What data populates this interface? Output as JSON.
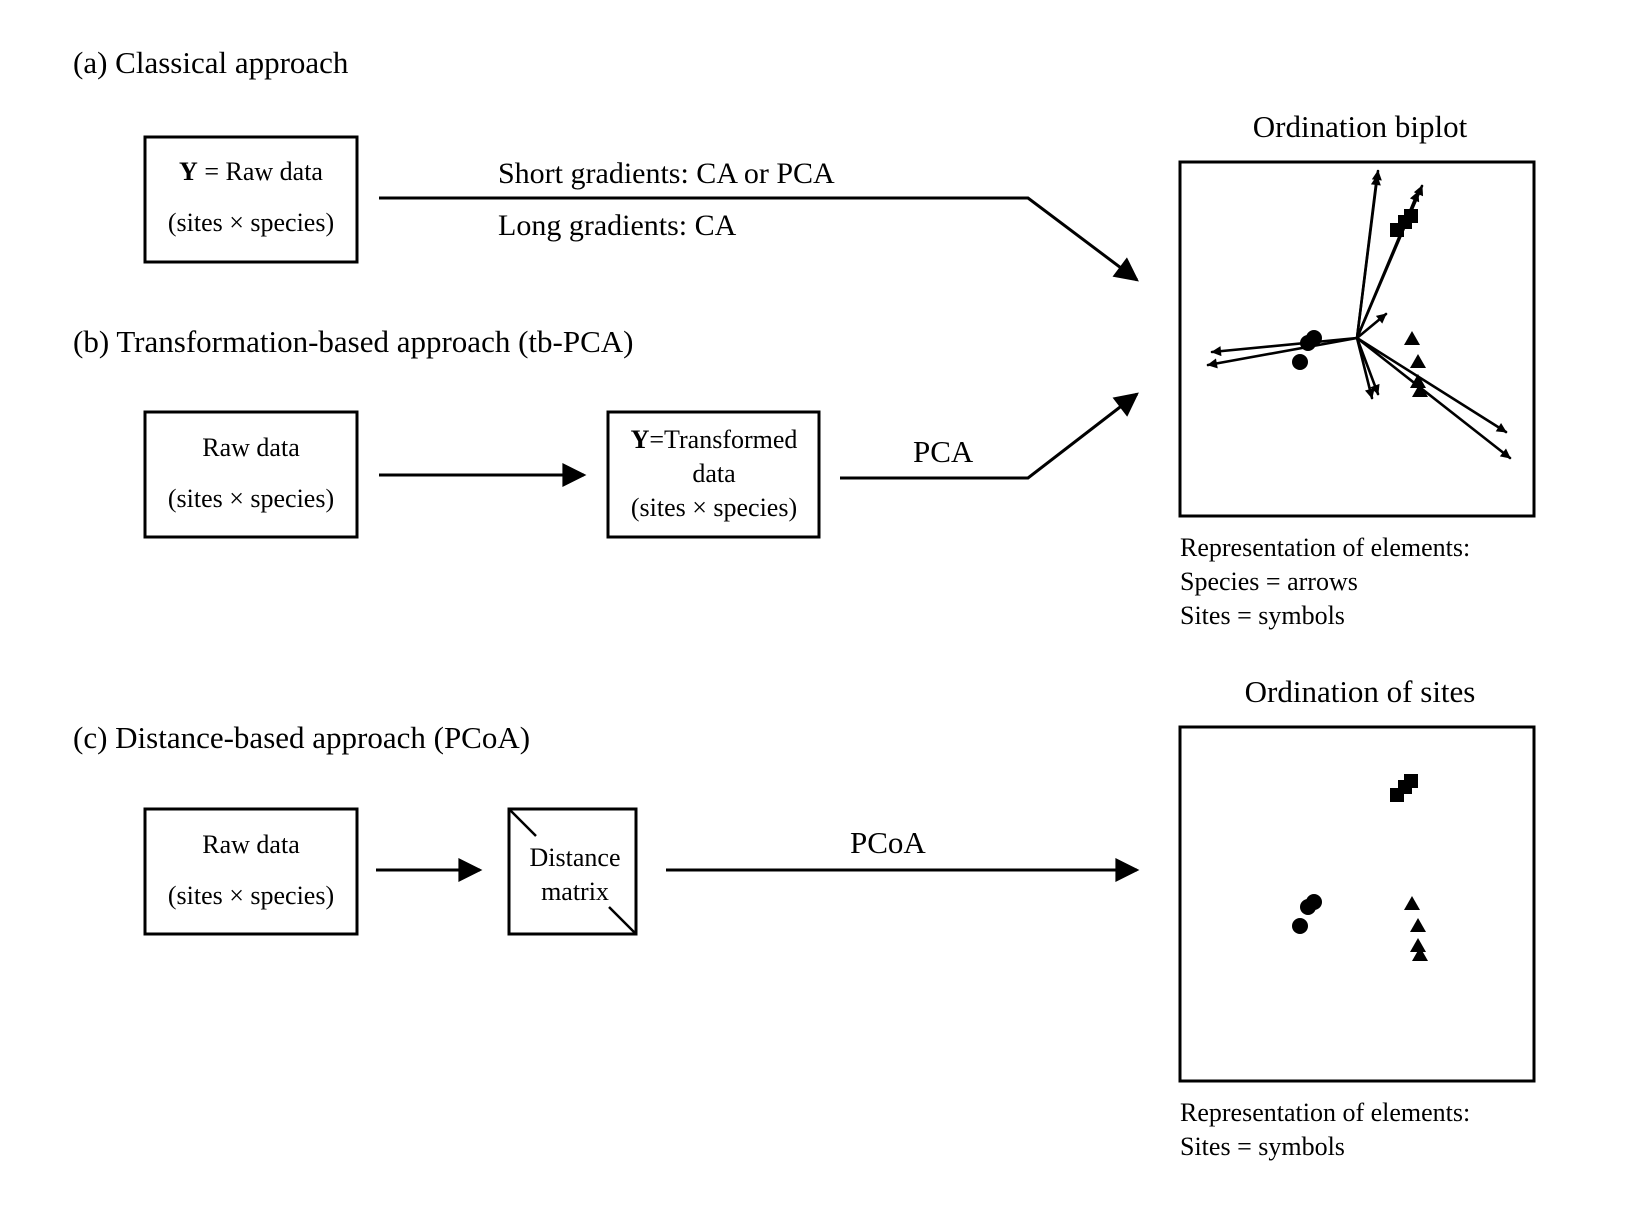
{
  "sections": {
    "a": {
      "heading": "(a) Classical approach",
      "box_y_label": "Y",
      "box_rest": " = Raw data",
      "box_line2": "(sites × species)",
      "path_upper": "Short gradients: CA or PCA",
      "path_lower": "Long gradients: CA"
    },
    "b": {
      "heading": "(b) Transformation-based approach (tb-PCA)",
      "raw_line1": "Raw data",
      "raw_line2": "(sites × species)",
      "trans_y_label": "Y",
      "trans_rest": "=Transformed",
      "trans_line2": "data",
      "trans_line3": "(sites × species)",
      "method": "PCA"
    },
    "c": {
      "heading": "(c) Distance-based approach (PCoA)",
      "raw_line1": "Raw data",
      "raw_line2": "(sites × species)",
      "dist_line1": "Distance",
      "dist_line2": "matrix",
      "method": "PCoA"
    }
  },
  "biplot": {
    "title": "Ordination biplot",
    "caption": [
      "Representation of elements:",
      "Species = arrows",
      "Sites = symbols"
    ]
  },
  "sites_plot": {
    "title": "Ordination of sites",
    "caption": [
      "Representation of elements:",
      "Sites = symbols"
    ]
  },
  "colors": {
    "ink": "#000000",
    "background": "#ffffff"
  },
  "icons": {
    "site_groups": [
      "circle-icon",
      "square-icon",
      "triangle-icon"
    ],
    "species": "arrow-icon"
  }
}
